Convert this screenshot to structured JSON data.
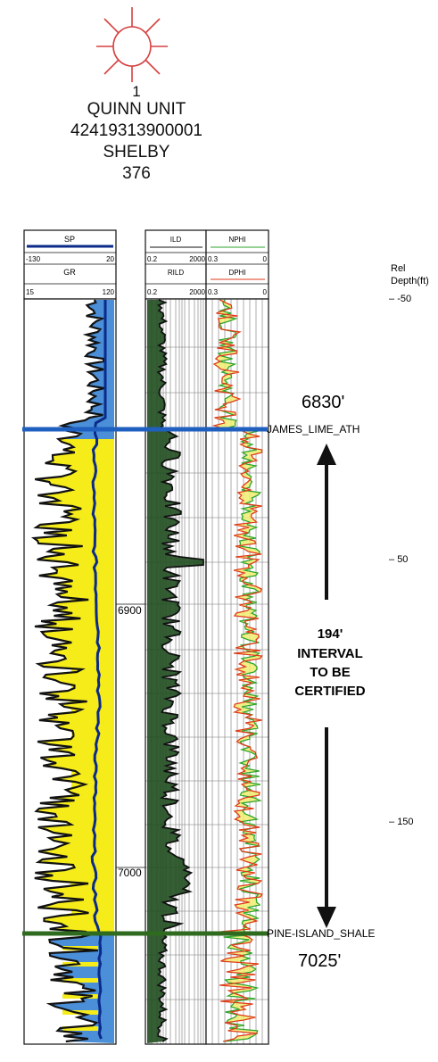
{
  "header": {
    "well_number": "1",
    "lease_name": "QUINN UNIT",
    "api_number": "42419313900001",
    "county": "SHELBY",
    "elevation": "376"
  },
  "track1": {
    "sp": {
      "name": "SP",
      "min": "-130",
      "max": "20"
    },
    "gr": {
      "name": "GR",
      "min": "15",
      "max": "120"
    }
  },
  "track2": {
    "ild": {
      "name": "ILD",
      "min": "0.2",
      "max": "2000"
    },
    "rild": {
      "name": "RILD",
      "min": "0.2",
      "max": "2000"
    }
  },
  "track3": {
    "nphi": {
      "name": "NPHI",
      "min": "0.3",
      "max": "0"
    },
    "dphi": {
      "name": "DPHI",
      "min": "0.3",
      "max": "0"
    }
  },
  "rel_depth": {
    "label_line1": "Rel",
    "label_line2": "Depth(ft)",
    "ticks": [
      "-50",
      "50",
      "150"
    ]
  },
  "depth_ticks": [
    "6900",
    "7000"
  ],
  "tops": {
    "upper": {
      "name": "JAMES_LIME_ATH",
      "depth": "6830'",
      "color": "#1f5fbf"
    },
    "lower": {
      "name": "PINE-ISLAND_SHALE",
      "depth": "7025'",
      "color": "#2e6b1f"
    }
  },
  "interval": {
    "line1": "194'",
    "line2": "INTERVAL",
    "line3": "TO BE",
    "line4": "CERTIFIED"
  },
  "colors": {
    "gr_sand_fill": "#f5ec1a",
    "gr_shale_fill": "#4a8fd8",
    "gr_curve": "#111111",
    "sp_curve": "#0b2a8a",
    "resistivity_fill": "#1f4d1f",
    "nphi_curve": "#2da52d",
    "dphi_curve": "#e03a1a",
    "porosity_fill": "#f0ec70",
    "well_symbol": "#d64040"
  }
}
